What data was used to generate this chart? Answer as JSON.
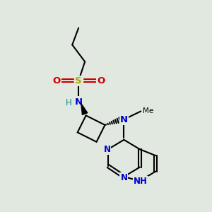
{
  "bg_color": "#e0e8e0",
  "bond_color": "#000000",
  "n_color": "#0000cc",
  "s_color": "#aaaa00",
  "o_color": "#cc0000",
  "h_color": "#008888",
  "line_width": 1.5,
  "figsize": [
    3.0,
    3.0
  ],
  "dpi": 100,
  "xlim": [
    0,
    10
  ],
  "ylim": [
    0,
    10
  ]
}
